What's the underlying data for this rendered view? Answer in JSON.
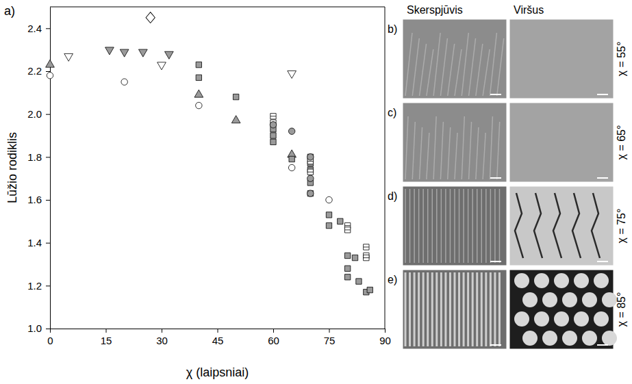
{
  "chart_data": {
    "type": "scatter",
    "panel_label": "a)",
    "x_label": "χ (laipsniai)",
    "y_label": "Lūžio rodiklis",
    "xlim": [
      0,
      90
    ],
    "xticks": [
      0,
      15,
      30,
      45,
      60,
      75,
      90
    ],
    "ylim": [
      1.0,
      2.5
    ],
    "yticks": [
      {
        "value": 1.0,
        "label": "1.0"
      },
      1.2,
      1.4,
      1.6,
      1.8,
      {
        "value": 2.0,
        "label": "2.0"
      },
      2.2,
      2.4
    ],
    "grid": false,
    "series": [
      {
        "marker": "triangle-up",
        "color": "#9a9a9a",
        "x": [
          0,
          40,
          50,
          65
        ],
        "values": [
          2.23,
          2.09,
          1.97,
          1.81
        ]
      },
      {
        "marker": "circle",
        "color": "#ffffff",
        "x": [
          0,
          20,
          40,
          65,
          75
        ],
        "values": [
          2.18,
          2.15,
          2.04,
          1.75,
          1.6
        ]
      },
      {
        "marker": "triangle-down",
        "color": "#ffffff",
        "x": [
          5,
          30,
          65
        ],
        "values": [
          2.27,
          2.23,
          2.19
        ]
      },
      {
        "marker": "triangle-down",
        "color": "#9a9a9a",
        "x": [
          16,
          20,
          25,
          32
        ],
        "values": [
          2.3,
          2.29,
          2.29,
          2.28
        ]
      },
      {
        "marker": "diamond",
        "color": "#ffffff",
        "x": [
          27
        ],
        "values": [
          2.45
        ]
      },
      {
        "marker": "square",
        "color": "#9a9a9a",
        "x": [
          40,
          40,
          50,
          60,
          60,
          60,
          65,
          70,
          70,
          70,
          70,
          70,
          75,
          75,
          78,
          80,
          80,
          80,
          82,
          83,
          85,
          86
        ],
        "values": [
          2.23,
          2.17,
          2.08,
          1.93,
          1.9,
          1.87,
          1.79,
          1.8,
          1.77,
          1.74,
          1.68,
          1.63,
          1.53,
          1.48,
          1.5,
          1.34,
          1.28,
          1.24,
          1.33,
          1.22,
          1.17,
          1.18
        ]
      },
      {
        "marker": "square",
        "color": "#ffffff",
        "x": [
          60,
          60,
          70,
          70,
          80,
          80,
          85,
          85,
          85
        ],
        "values": [
          1.99,
          1.96,
          1.78,
          1.73,
          1.48,
          1.46,
          1.38,
          1.34,
          1.33
        ]
      },
      {
        "marker": "circle",
        "color": "#9a9a9a",
        "x": [
          60,
          65,
          70,
          70,
          70
        ],
        "values": [
          1.95,
          1.92,
          1.8,
          1.7,
          1.63
        ]
      }
    ]
  },
  "images": {
    "column_heads": [
      "Skerspjūvis",
      "Viršus"
    ],
    "rows": [
      {
        "label": "b)",
        "angle": "χ = 55°"
      },
      {
        "label": "c)",
        "angle": "χ = 65°"
      },
      {
        "label": "d)",
        "angle": "χ = 75°"
      },
      {
        "label": "e)",
        "angle": "χ = 85°"
      }
    ]
  }
}
